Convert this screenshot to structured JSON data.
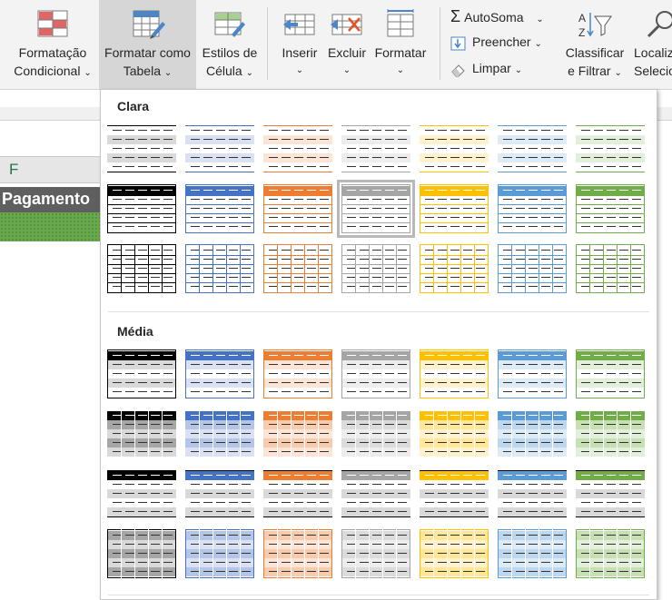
{
  "ribbon": {
    "buttons": [
      {
        "name": "conditional-formatting-button",
        "line1": "Formatação",
        "line2": "Condicional",
        "icon": "conditional-format-icon"
      },
      {
        "name": "format-as-table-button",
        "line1": "Formatar como",
        "line2": "Tabela",
        "icon": "format-table-icon",
        "active": true
      },
      {
        "name": "cell-styles-button",
        "line1": "Estilos de",
        "line2": "Célula",
        "icon": "cell-styles-icon"
      },
      {
        "name": "insert-button",
        "line1": "Inserir",
        "line2": "",
        "icon": "insert-cells-icon"
      },
      {
        "name": "delete-button",
        "line1": "Excluir",
        "line2": "",
        "icon": "delete-cells-icon"
      },
      {
        "name": "format-button",
        "line1": "Formatar",
        "line2": "",
        "icon": "format-cells-icon"
      }
    ],
    "editing": {
      "autosum": "AutoSoma",
      "fill": "Preencher",
      "clear": "Limpar",
      "sort_line1": "Classificar",
      "sort_line2": "e Filtrar",
      "find_line1": "Localiz",
      "find_line2": "Selecio"
    }
  },
  "sheet": {
    "column_letter": "F",
    "header_text": "Pagamento"
  },
  "gallery": {
    "sections": [
      {
        "title": "Clara"
      },
      {
        "title": "Média"
      }
    ],
    "selected_style": "Light 4"
  },
  "theme_colors": {
    "black": "#000000",
    "blue": "#4472c4",
    "orange": "#ed7d31",
    "gray": "#a5a5a5",
    "gold": "#ffc000",
    "lightblue": "#5b9bd5",
    "green": "#70ad47"
  }
}
